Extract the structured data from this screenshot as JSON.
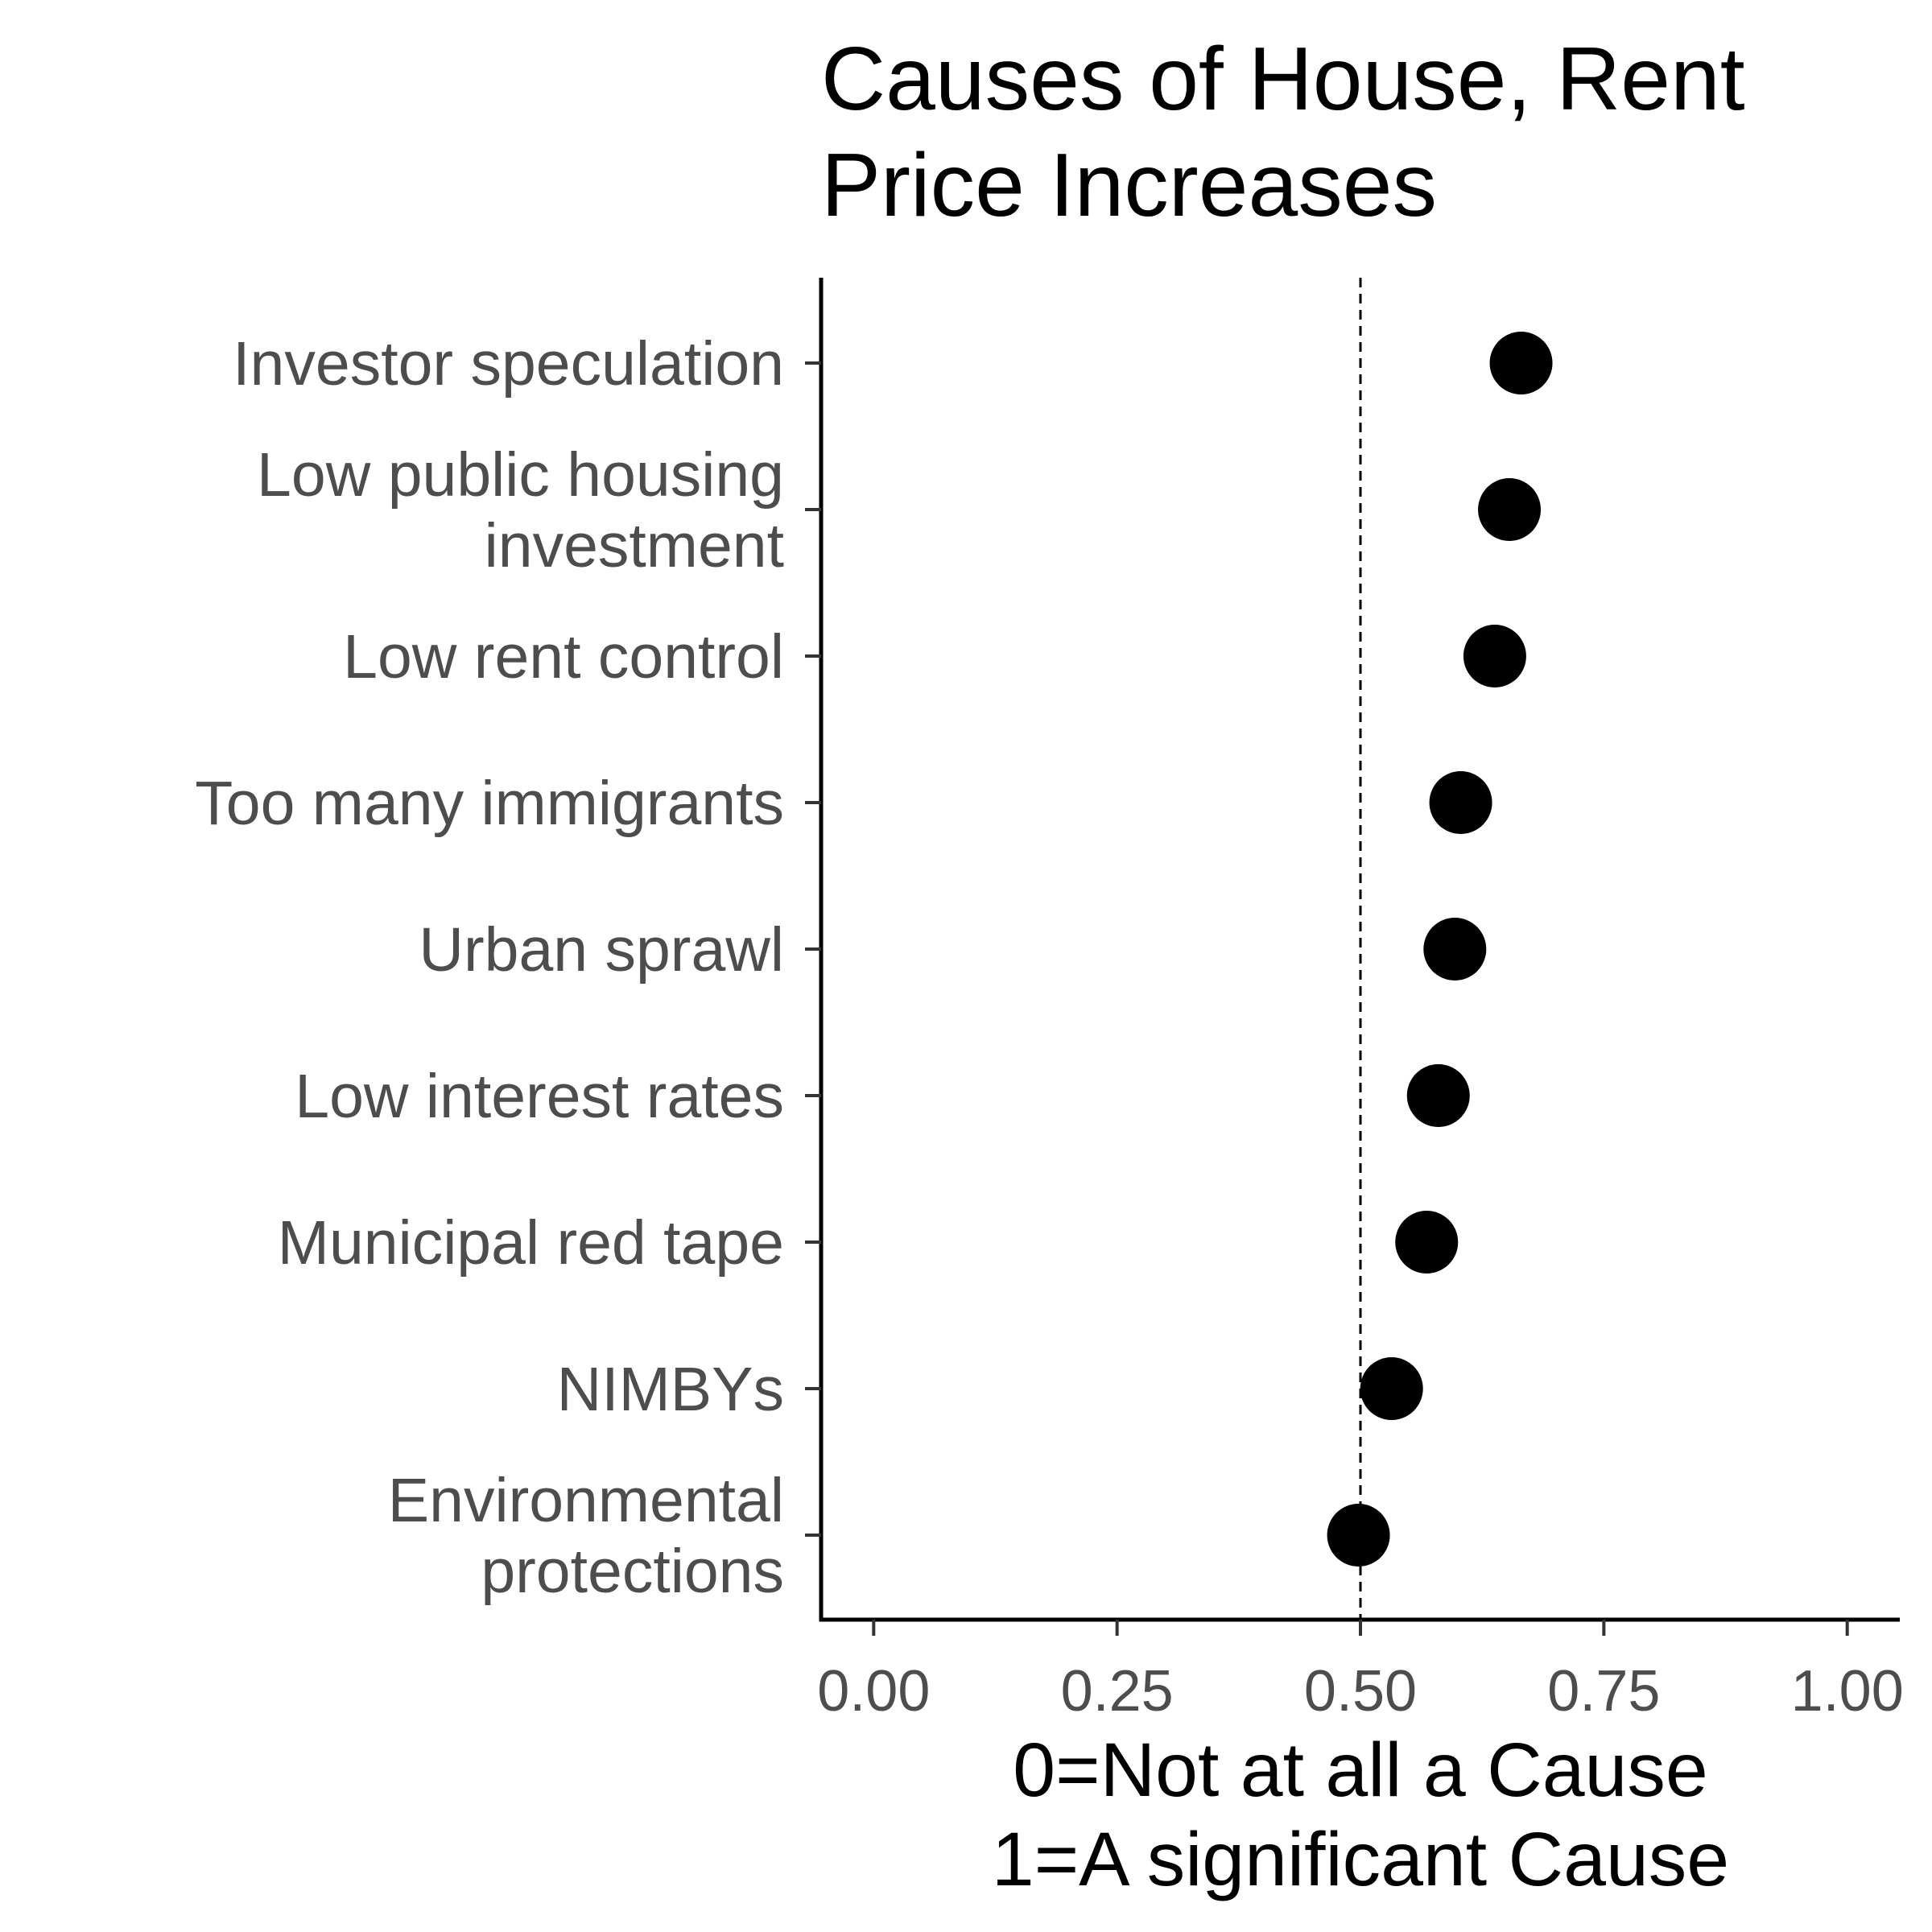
{
  "chart_data": {
    "type": "scatter",
    "title_lines": [
      "Causes of House, Rent",
      "Price Increases"
    ],
    "categories": [
      [
        "Investor speculation"
      ],
      [
        "Low public housing",
        "investment"
      ],
      [
        "Low rent control"
      ],
      [
        "Too many immigrants"
      ],
      [
        "Urban sprawl"
      ],
      [
        "Low interest rates"
      ],
      [
        "Municipal red tape"
      ],
      [
        "NIMBYs"
      ],
      [
        "Environmental",
        "protections"
      ]
    ],
    "values": [
      0.665,
      0.653,
      0.638,
      0.603,
      0.597,
      0.58,
      0.568,
      0.532,
      0.498
    ],
    "xlim": [
      -0.054,
      1.054
    ],
    "x_ticks": [
      0,
      0.25,
      0.5,
      0.75,
      1.0
    ],
    "x_tick_labels": [
      "0.00",
      "0.25",
      "0.50",
      "0.75",
      "1.00"
    ],
    "xlabel_lines": [
      "0=Not at all a Cause",
      "1=A significant Cause"
    ],
    "ylabel": "",
    "reference_line": {
      "x": 0.5,
      "style": "dashed"
    },
    "grid": false,
    "legend": "none",
    "point_color": "#000000",
    "axis_color": "#000000",
    "label_color": "#4d4d4d"
  }
}
